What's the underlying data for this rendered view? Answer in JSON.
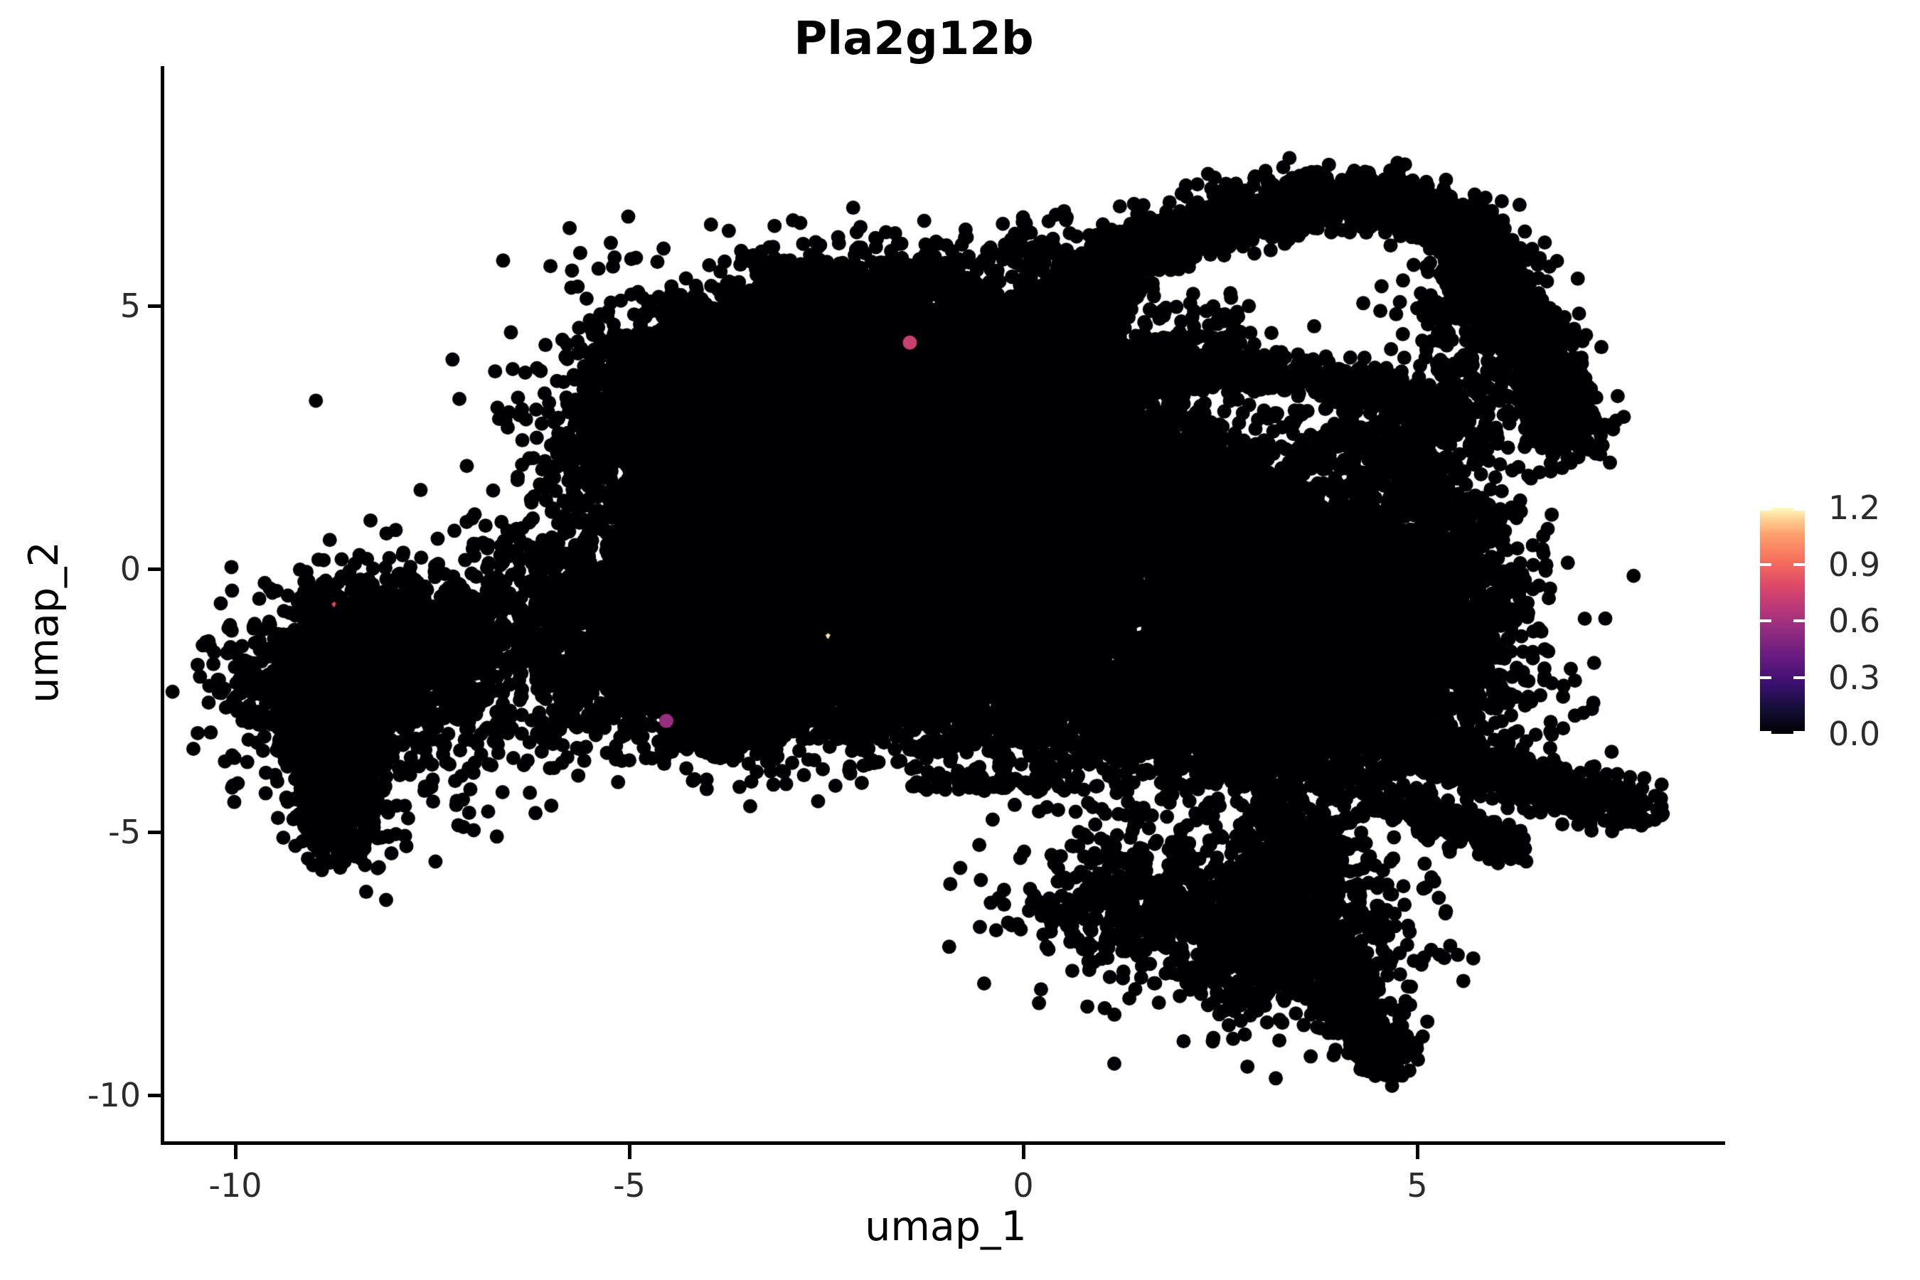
{
  "title": "Pla2g12b",
  "axes": {
    "x_label": "umap_1",
    "y_label": "umap_2"
  },
  "chart_data": {
    "type": "scatter",
    "title": "Pla2g12b",
    "xlabel": "umap_1",
    "ylabel": "umap_2",
    "xlim": [
      -10.9,
      8.9
    ],
    "ylim": [
      -10.9,
      9.5
    ],
    "grid": false,
    "legend_position": "right",
    "background_color": "#ffffff",
    "axis_color": "#000000",
    "tick_label_color": "#2b2b2b",
    "point_color": "#000004",
    "point_radius_px": 10,
    "x_ticks": [
      {
        "label": "-10",
        "value": -10
      },
      {
        "label": "-5",
        "value": -5
      },
      {
        "label": "0",
        "value": 0
      },
      {
        "label": "5",
        "value": 5
      }
    ],
    "y_ticks": [
      {
        "label": "5",
        "value": 5
      },
      {
        "label": "0",
        "value": 0
      },
      {
        "label": "-5",
        "value": -5
      },
      {
        "label": "-10",
        "value": -10
      }
    ],
    "colorbar": {
      "name": "expression",
      "colormap": "magma",
      "min": 0.0,
      "max": 1.2,
      "ticks": [
        {
          "label": "1.2",
          "value": 1.2
        },
        {
          "label": "0.9",
          "value": 0.9
        },
        {
          "label": "0.6",
          "value": 0.6
        },
        {
          "label": "0.3",
          "value": 0.3
        },
        {
          "label": "0.0",
          "value": 0.0
        }
      ],
      "stops": [
        [
          0.0,
          "#000004"
        ],
        [
          0.11,
          "#140e36"
        ],
        [
          0.22,
          "#3b0f70"
        ],
        [
          0.33,
          "#641a80"
        ],
        [
          0.44,
          "#8c2981"
        ],
        [
          0.55,
          "#b73779"
        ],
        [
          0.66,
          "#de4968"
        ],
        [
          0.77,
          "#f7705c"
        ],
        [
          0.88,
          "#fe9f6d"
        ],
        [
          0.95,
          "#fecf92"
        ],
        [
          1.0,
          "#fcfdbf"
        ]
      ]
    },
    "expressing_cells": [
      {
        "x": -1.44,
        "y": 4.3,
        "value": 0.8,
        "color": "#c8416e",
        "occluded": false
      },
      {
        "x": -4.53,
        "y": -2.89,
        "value": 0.55,
        "color": "#9a2d80",
        "occluded": false
      },
      {
        "x": -8.75,
        "y": -0.68,
        "value": 0.9,
        "color": "#d6465c",
        "occluded": true
      },
      {
        "x": -2.48,
        "y": -1.28,
        "value": 1.15,
        "color": "#f2e3a4",
        "occluded": true
      }
    ],
    "density_clusters": [
      {
        "type": "gauss",
        "cx": -8.55,
        "cy": -2.0,
        "sx": 0.6,
        "sy": 0.8,
        "n": 1100
      },
      {
        "type": "gauss",
        "cx": -7.8,
        "cy": -1.3,
        "sx": 0.55,
        "sy": 0.55,
        "n": 500
      },
      {
        "type": "gauss",
        "cx": -8.7,
        "cy": -4.2,
        "sx": 0.3,
        "sy": 0.65,
        "n": 500
      },
      {
        "type": "gauss",
        "cx": -8.3,
        "cy": -2.3,
        "sx": 1.15,
        "sy": 1.25,
        "n": 280
      },
      {
        "type": "gauss",
        "cx": -6.3,
        "cy": -2.1,
        "sx": 0.95,
        "sy": 1.05,
        "n": 300
      },
      {
        "type": "gauss",
        "cx": -6.1,
        "cy": -0.7,
        "sx": 0.8,
        "sy": 0.8,
        "n": 220
      },
      {
        "type": "gauss",
        "cx": -10.0,
        "cy": -2.0,
        "sx": 0.25,
        "sy": 0.35,
        "n": 40
      },
      {
        "type": "band",
        "pts": [
          [
            -5.6,
            2.2
          ],
          [
            -3.9,
            3.9
          ],
          [
            -2.1,
            5.5
          ]
        ],
        "w": 0.4,
        "n": 900
      },
      {
        "type": "gauss",
        "cx": -3.3,
        "cy": 3.3,
        "sx": 1.15,
        "sy": 1.05,
        "n": 2400
      },
      {
        "type": "gauss",
        "cx": -1.6,
        "cy": 4.0,
        "sx": 1.05,
        "sy": 0.95,
        "n": 2400
      },
      {
        "type": "gauss",
        "cx": -2.4,
        "cy": 1.7,
        "sx": 1.55,
        "sy": 1.25,
        "n": 3200
      },
      {
        "type": "gauss",
        "cx": -0.4,
        "cy": 0.7,
        "sx": 1.45,
        "sy": 1.25,
        "n": 3000
      },
      {
        "type": "gauss",
        "cx": -4.1,
        "cy": -0.4,
        "sx": 1.0,
        "sy": 1.15,
        "n": 1700
      },
      {
        "type": "gauss",
        "cx": -3.8,
        "cy": -2.4,
        "sx": 0.85,
        "sy": 0.6,
        "n": 900
      },
      {
        "type": "gauss",
        "cx": -1.7,
        "cy": -1.5,
        "sx": 1.25,
        "sy": 0.95,
        "n": 1800
      },
      {
        "type": "gauss",
        "cx": 0.4,
        "cy": 2.7,
        "sx": 1.0,
        "sy": 1.0,
        "n": 1400
      },
      {
        "type": "gauss",
        "cx": 1.8,
        "cy": 0.7,
        "sx": 1.25,
        "sy": 1.1,
        "n": 1800
      },
      {
        "type": "gauss",
        "cx": 0.4,
        "cy": -2.3,
        "sx": 1.2,
        "sy": 0.85,
        "n": 1100
      },
      {
        "type": "gauss",
        "cx": 3.3,
        "cy": -0.6,
        "sx": 1.15,
        "sy": 1.1,
        "n": 2100
      },
      {
        "type": "gauss",
        "cx": 4.4,
        "cy": -2.1,
        "sx": 0.95,
        "sy": 0.9,
        "n": 1500
      },
      {
        "type": "gauss",
        "cx": 2.9,
        "cy": -3.1,
        "sx": 1.05,
        "sy": 0.7,
        "n": 1000
      },
      {
        "type": "gauss",
        "cx": 5.1,
        "cy": -0.1,
        "sx": 0.7,
        "sy": 0.95,
        "n": 700
      },
      {
        "type": "band",
        "pts": [
          [
            4.7,
            -3.3
          ],
          [
            6.0,
            -3.9
          ],
          [
            7.0,
            -4.3
          ],
          [
            7.85,
            -4.6
          ]
        ],
        "w": 0.22,
        "n": 550
      },
      {
        "type": "band",
        "pts": [
          [
            4.5,
            -4.3
          ],
          [
            5.5,
            -4.9
          ],
          [
            6.2,
            -5.3
          ]
        ],
        "w": 0.18,
        "n": 200
      },
      {
        "type": "gauss",
        "cx": 3.2,
        "cy": -6.9,
        "sx": 0.85,
        "sy": 0.8,
        "n": 1100
      },
      {
        "type": "band",
        "pts": [
          [
            3.9,
            -7.9
          ],
          [
            4.4,
            -8.8
          ],
          [
            4.7,
            -9.4
          ]
        ],
        "w": 0.22,
        "n": 320
      },
      {
        "type": "gauss",
        "cx": 1.2,
        "cy": -6.6,
        "sx": 0.8,
        "sy": 0.5,
        "n": 240
      },
      {
        "type": "band",
        "pts": [
          [
            3.6,
            -4.9
          ],
          [
            3.4,
            -6.0
          ]
        ],
        "w": 0.35,
        "n": 350
      },
      {
        "type": "band",
        "pts": [
          [
            -1.4,
            -4.05
          ],
          [
            0.6,
            -4.1
          ]
        ],
        "w": 0.09,
        "n": 70
      },
      {
        "type": "gauss",
        "cx": 1.4,
        "cy": -5.4,
        "sx": 0.6,
        "sy": 0.4,
        "n": 90
      },
      {
        "type": "band",
        "pts": [
          [
            0.7,
            5.0
          ],
          [
            1.6,
            6.1
          ],
          [
            2.7,
            6.75
          ],
          [
            3.9,
            7.0
          ],
          [
            4.9,
            6.9
          ],
          [
            5.6,
            6.4
          ]
        ],
        "w": 0.28,
        "n": 1300
      },
      {
        "type": "band",
        "pts": [
          [
            5.65,
            6.3
          ],
          [
            6.15,
            5.2
          ],
          [
            6.55,
            4.1
          ],
          [
            6.85,
            3.1
          ],
          [
            6.95,
            2.3
          ]
        ],
        "w": 0.25,
        "n": 800
      },
      {
        "type": "gauss",
        "cx": 5.8,
        "cy": 4.7,
        "sx": 0.5,
        "sy": 0.9,
        "n": 320
      },
      {
        "type": "band",
        "pts": [
          [
            1.0,
            3.95
          ],
          [
            2.3,
            3.85
          ],
          [
            3.5,
            3.7
          ],
          [
            4.7,
            3.3
          ],
          [
            5.3,
            2.9
          ]
        ],
        "w": 0.2,
        "n": 620
      },
      {
        "type": "gauss",
        "cx": 0.45,
        "cy": 3.9,
        "sx": 0.5,
        "sy": 0.95,
        "n": 700
      },
      {
        "type": "gauss",
        "cx": 4.9,
        "cy": 2.2,
        "sx": 0.6,
        "sy": 0.75,
        "n": 330
      },
      {
        "type": "gauss",
        "cx": 2.4,
        "cy": 4.5,
        "sx": 0.25,
        "sy": 0.3,
        "n": 40
      },
      {
        "type": "gauss",
        "cx": 0.6,
        "cy": 5.8,
        "sx": 0.5,
        "sy": 0.5,
        "n": 90
      },
      {
        "type": "band",
        "pts": [
          [
            1.0,
            1.9
          ],
          [
            2.2,
            1.7
          ],
          [
            3.3,
            1.4
          ]
        ],
        "w": 0.35,
        "n": 300
      }
    ]
  }
}
